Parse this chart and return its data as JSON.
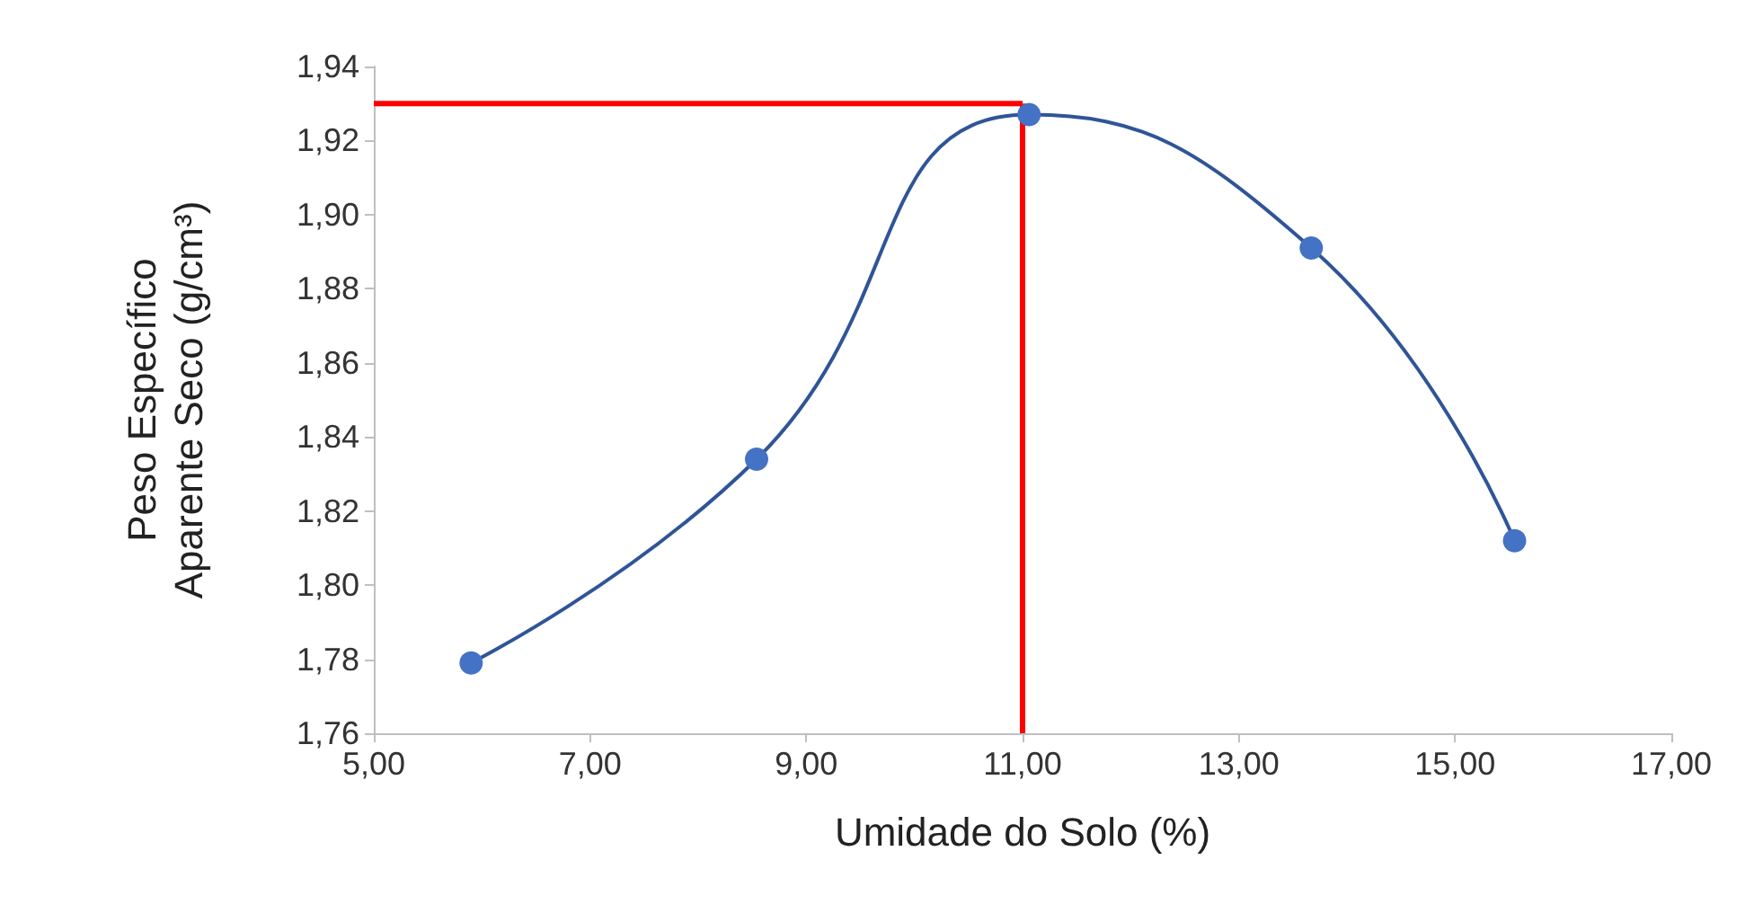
{
  "chart_data": {
    "type": "line",
    "xlabel": "Umidade do Solo (%)",
    "ylabel": "Peso Específico Aparente Seco (g/cm³)",
    "x": [
      5.9,
      8.54,
      11.06,
      13.67,
      15.55
    ],
    "series": [
      {
        "color": "#4472c4",
        "values": [
          1.779,
          1.834,
          1.927,
          1.891,
          1.812
        ]
      }
    ],
    "xlim": [
      5,
      17
    ],
    "xticks": [
      {
        "value": 5,
        "label": "5,00"
      },
      {
        "value": 7,
        "label": "7,00"
      },
      {
        "value": 9,
        "label": "9,00"
      },
      {
        "value": 11,
        "label": "11,00"
      },
      {
        "value": 13,
        "label": "13,00"
      },
      {
        "value": 15,
        "label": "15,00"
      },
      {
        "value": 17,
        "label": "17,00"
      }
    ],
    "ylim": [
      1.76,
      1.94
    ],
    "yticks": [
      {
        "value": 1.76,
        "label": "1,76"
      },
      {
        "value": 1.78,
        "label": "1,78"
      },
      {
        "value": 1.8,
        "label": "1,80"
      },
      {
        "value": 1.82,
        "label": "1,82"
      },
      {
        "value": 1.84,
        "label": "1,84"
      },
      {
        "value": 1.86,
        "label": "1,86"
      },
      {
        "value": 1.88,
        "label": "1,88"
      },
      {
        "value": 1.9,
        "label": "1,90"
      },
      {
        "value": 1.92,
        "label": "1,92"
      },
      {
        "value": 1.94,
        "label": "1,94"
      }
    ],
    "ref_lines": [
      {
        "axis": "x",
        "value": 11,
        "color": "#ff0000"
      },
      {
        "axis": "y",
        "value": 1.93,
        "color": "#ff0000"
      }
    ],
    "marker": "circle",
    "line_style": "solid",
    "grid": false
  }
}
